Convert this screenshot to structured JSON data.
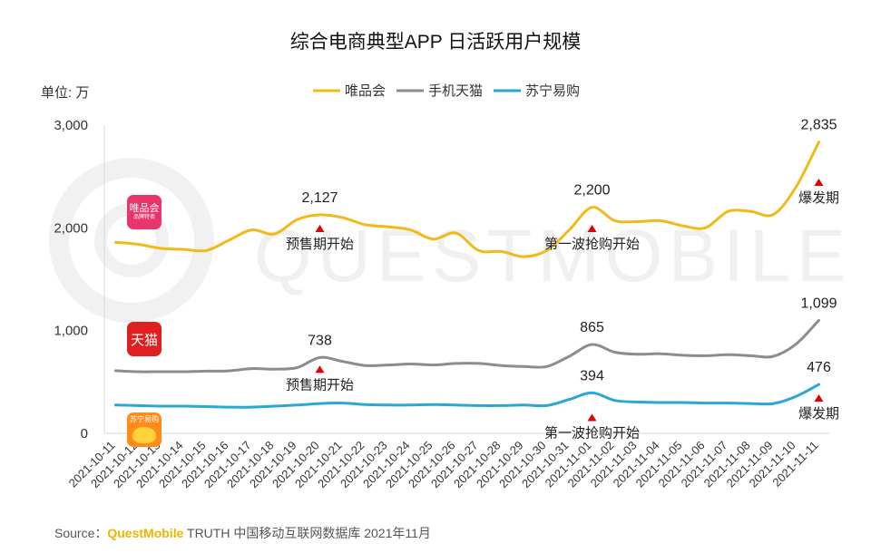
{
  "header": {
    "title": "综合电商典型APP 日活跃用户规模"
  },
  "unit_label": "单位: 万",
  "watermark": "QUESTMOBILE",
  "source": {
    "prefix": "Source：",
    "brand": "QuestMobile",
    "suffix": " TRUTH 中国移动互联网数据库 2021年11月"
  },
  "logos": {
    "vip": {
      "line1": "唯品会",
      "line2": "品牌特卖"
    },
    "tmall": {
      "line1": "天猫"
    },
    "suning": {
      "line1": "苏宁易购"
    }
  },
  "colors": {
    "vip": "#f2b91b",
    "tmall": "#8c8c8c",
    "suning": "#2aa7d6",
    "marker": "#e30000"
  },
  "chart_data": {
    "type": "line",
    "title": "综合电商典型APP 日活跃用户规模",
    "ylabel": "单位: 万",
    "ylim": [
      0,
      3000
    ],
    "yticks": [
      0,
      1000,
      2000,
      3000
    ],
    "ytick_labels": [
      "0",
      "1,000",
      "2,000",
      "3,000"
    ],
    "legend_position": "top-center",
    "categories": [
      "2021-10-11",
      "2021-10-12",
      "2021-10-13",
      "2021-10-14",
      "2021-10-15",
      "2021-10-16",
      "2021-10-17",
      "2021-10-18",
      "2021-10-19",
      "2021-10-20",
      "2021-10-21",
      "2021-10-22",
      "2021-10-23",
      "2021-10-24",
      "2021-10-25",
      "2021-10-26",
      "2021-10-27",
      "2021-10-28",
      "2021-10-29",
      "2021-10-30",
      "2021-10-31",
      "2021-11-01",
      "2021-11-02",
      "2021-11-03",
      "2021-11-04",
      "2021-11-05",
      "2021-11-06",
      "2021-11-07",
      "2021-11-08",
      "2021-11-09",
      "2021-11-10",
      "2021-11-11"
    ],
    "series": [
      {
        "key": "vip",
        "name": "唯品会",
        "color": "#f2b91b",
        "values": [
          1860,
          1840,
          1800,
          1790,
          1780,
          1880,
          1980,
          1940,
          2080,
          2127,
          2100,
          2030,
          2010,
          1980,
          1890,
          1950,
          1780,
          1770,
          1720,
          1780,
          1980,
          2200,
          2070,
          2060,
          2070,
          2020,
          2000,
          2160,
          2160,
          2130,
          2400,
          2835
        ]
      },
      {
        "key": "tmall",
        "name": "手机天猫",
        "color": "#8c8c8c",
        "values": [
          610,
          600,
          600,
          600,
          605,
          608,
          630,
          625,
          640,
          738,
          700,
          660,
          665,
          675,
          665,
          680,
          680,
          660,
          650,
          650,
          750,
          865,
          790,
          770,
          775,
          760,
          755,
          765,
          755,
          750,
          870,
          1099
        ]
      },
      {
        "key": "suning",
        "name": "苏宁易购",
        "color": "#2aa7d6",
        "values": [
          275,
          270,
          265,
          265,
          260,
          255,
          255,
          265,
          275,
          290,
          295,
          280,
          275,
          275,
          280,
          275,
          270,
          270,
          275,
          270,
          330,
          394,
          320,
          305,
          300,
          300,
          295,
          295,
          290,
          290,
          360,
          476
        ]
      }
    ],
    "data_labels": [
      {
        "series": "vip",
        "index": 9,
        "text": "2,127"
      },
      {
        "series": "vip",
        "index": 21,
        "text": "2,200"
      },
      {
        "series": "vip",
        "index": 31,
        "text": "2,835"
      },
      {
        "series": "tmall",
        "index": 9,
        "text": "738"
      },
      {
        "series": "tmall",
        "index": 21,
        "text": "865"
      },
      {
        "series": "tmall",
        "index": 31,
        "text": "1,099"
      },
      {
        "series": "suning",
        "index": 21,
        "text": "394"
      },
      {
        "series": "suning",
        "index": 31,
        "text": "476"
      }
    ],
    "annotations": [
      {
        "index": 9,
        "y": 1950,
        "text": "预售期开始"
      },
      {
        "index": 21,
        "y": 1950,
        "text": "第一波抢购开始"
      },
      {
        "index": 31,
        "y": 2400,
        "text": "爆发期"
      },
      {
        "index": 9,
        "y": 580,
        "text": "预售期开始"
      },
      {
        "index": 21,
        "y": 110,
        "text": "第一波抢购开始"
      },
      {
        "index": 31,
        "y": 300,
        "text": "爆发期"
      }
    ]
  }
}
